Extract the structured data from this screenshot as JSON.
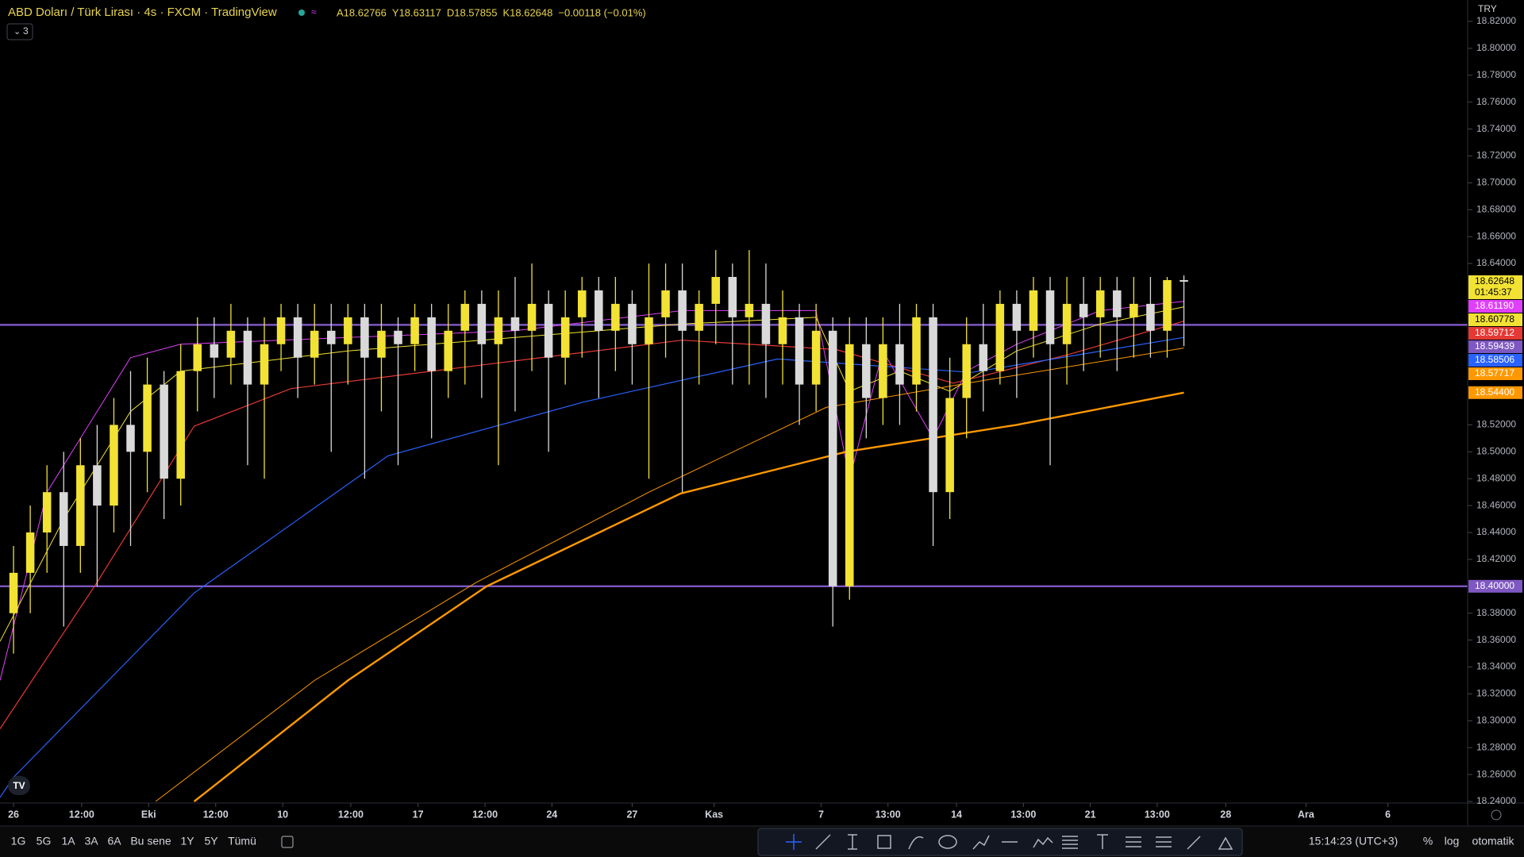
{
  "header": {
    "title": "ABD Doları / Türk Lirası · 4s · FXCM · TradingView",
    "ohlc": [
      "A18.62766",
      "Y18.63117",
      "D18.57855",
      "K18.62648",
      "−0.00118 (−0.01%)"
    ],
    "indicators": "3",
    "currency": "TRY"
  },
  "chart_data": {
    "type": "candlestick",
    "xlim": [
      -0.81,
      86.97
    ],
    "ylim": [
      18.24,
      18.82
    ],
    "xticks": [
      {
        "value": 0,
        "label": "26"
      },
      {
        "value": 4.07,
        "label": "12:00"
      },
      {
        "value": 8.08,
        "label": "Eki"
      },
      {
        "value": 12.09,
        "label": "12:00"
      },
      {
        "value": 16.1,
        "label": "10"
      },
      {
        "value": 20.17,
        "label": "12:00"
      },
      {
        "value": 24.19,
        "label": "17"
      },
      {
        "value": 28.2,
        "label": "12:00"
      },
      {
        "value": 32.2,
        "label": "24"
      },
      {
        "value": 37.0,
        "label": "27"
      },
      {
        "value": 41.9,
        "label": "Kas"
      },
      {
        "value": 48.3,
        "label": "7"
      },
      {
        "value": 52.3,
        "label": "13:00"
      },
      {
        "value": 56.4,
        "label": "14"
      },
      {
        "value": 60.4,
        "label": "13:00"
      },
      {
        "value": 64.4,
        "label": "21"
      },
      {
        "value": 68.4,
        "label": "13:00"
      },
      {
        "value": 72.5,
        "label": "28"
      },
      {
        "value": 77.3,
        "label": "Ara"
      },
      {
        "value": 82.2,
        "label": "6"
      }
    ],
    "yticks": [
      {
        "value": 18.24,
        "label": "18.24000"
      },
      {
        "value": 18.26,
        "label": "18.26000"
      },
      {
        "value": 18.28,
        "label": "18.28000"
      },
      {
        "value": 18.3,
        "label": "18.30000"
      },
      {
        "value": 18.32,
        "label": "18.32000"
      },
      {
        "value": 18.34,
        "label": "18.34000"
      },
      {
        "value": 18.36,
        "label": "18.36000"
      },
      {
        "value": 18.38,
        "label": "18.38000"
      },
      {
        "value": 18.42,
        "label": "18.42000"
      },
      {
        "value": 18.44,
        "label": "18.44000"
      },
      {
        "value": 18.46,
        "label": "18.46000"
      },
      {
        "value": 18.48,
        "label": "18.48000"
      },
      {
        "value": 18.5,
        "label": "18.50000"
      },
      {
        "value": 18.52,
        "label": "18.52000"
      },
      {
        "value": 18.64,
        "label": "18.64000"
      },
      {
        "value": 18.66,
        "label": "18.66000"
      },
      {
        "value": 18.68,
        "label": "18.68000"
      },
      {
        "value": 18.7,
        "label": "18.70000"
      },
      {
        "value": 18.72,
        "label": "18.72000"
      },
      {
        "value": 18.74,
        "label": "18.74000"
      },
      {
        "value": 18.76,
        "label": "18.76000"
      },
      {
        "value": 18.78,
        "label": "18.78000"
      },
      {
        "value": 18.8,
        "label": "18.80000"
      },
      {
        "value": 18.82,
        "label": "18.82000"
      }
    ],
    "candles": {
      "up_color": "#f2e234",
      "down_color": "#d9d9d9",
      "x": [
        0,
        1,
        2,
        3,
        4,
        5,
        6,
        7,
        8,
        9,
        10,
        11,
        12,
        13,
        14,
        15,
        16,
        17,
        18,
        19,
        20,
        21,
        22,
        23,
        24,
        25,
        26,
        27,
        28,
        29,
        30,
        31,
        32,
        33,
        34,
        35,
        36,
        37,
        38,
        39,
        40,
        41,
        42,
        43,
        44,
        45,
        46,
        47,
        48,
        49,
        50,
        51,
        52,
        53,
        54,
        55,
        56,
        57,
        58,
        59,
        60,
        61,
        62,
        63,
        64,
        65,
        66,
        67,
        68,
        69,
        70
      ],
      "open": [
        18.38,
        18.41,
        18.44,
        18.47,
        18.43,
        18.49,
        18.46,
        18.52,
        18.5,
        18.55,
        18.48,
        18.56,
        18.58,
        18.57,
        18.59,
        18.55,
        18.58,
        18.6,
        18.57,
        18.59,
        18.58,
        18.6,
        18.57,
        18.59,
        18.58,
        18.6,
        18.56,
        18.59,
        18.61,
        18.58,
        18.6,
        18.59,
        18.61,
        18.57,
        18.6,
        18.62,
        18.59,
        18.61,
        18.58,
        18.6,
        18.62,
        18.59,
        18.61,
        18.63,
        18.6,
        18.61,
        18.58,
        18.6,
        18.55,
        18.59,
        18.4,
        18.58,
        18.54,
        18.58,
        18.55,
        18.6,
        18.47,
        18.54,
        18.58,
        18.56,
        18.61,
        18.59,
        18.62,
        18.58,
        18.61,
        18.6,
        18.62,
        18.6,
        18.61,
        18.59,
        18.62766
      ],
      "high": [
        18.43,
        18.46,
        18.49,
        18.5,
        18.51,
        18.52,
        18.54,
        18.56,
        18.57,
        18.56,
        18.58,
        18.6,
        18.6,
        18.61,
        18.6,
        18.6,
        18.61,
        18.61,
        18.61,
        18.61,
        18.61,
        18.61,
        18.61,
        18.6,
        18.61,
        18.61,
        18.61,
        18.62,
        18.62,
        18.62,
        18.63,
        18.64,
        18.62,
        18.62,
        18.63,
        18.63,
        18.63,
        18.62,
        18.64,
        18.64,
        18.64,
        18.62,
        18.65,
        18.64,
        18.65,
        18.64,
        18.62,
        18.61,
        18.61,
        18.6,
        18.6,
        18.6,
        18.6,
        18.61,
        18.61,
        18.61,
        18.57,
        18.6,
        18.61,
        18.62,
        18.62,
        18.63,
        18.63,
        18.63,
        18.63,
        18.63,
        18.63,
        18.63,
        18.63,
        18.63,
        18.63117
      ],
      "low": [
        18.35,
        18.38,
        18.41,
        18.37,
        18.41,
        18.4,
        18.44,
        18.43,
        18.47,
        18.45,
        18.46,
        18.53,
        18.54,
        18.55,
        18.49,
        18.48,
        18.56,
        18.54,
        18.55,
        18.5,
        18.55,
        18.48,
        18.53,
        18.49,
        18.56,
        18.51,
        18.54,
        18.55,
        18.54,
        18.49,
        18.53,
        18.56,
        18.5,
        18.55,
        18.57,
        18.54,
        18.56,
        18.55,
        18.48,
        18.57,
        18.47,
        18.55,
        18.58,
        18.55,
        18.55,
        18.54,
        18.55,
        18.52,
        18.53,
        18.37,
        18.39,
        18.51,
        18.52,
        18.52,
        18.53,
        18.43,
        18.45,
        18.51,
        18.53,
        18.55,
        18.54,
        18.57,
        18.49,
        18.55,
        18.56,
        18.57,
        18.56,
        18.57,
        18.57,
        18.57,
        18.57855
      ],
      "close": [
        18.41,
        18.44,
        18.47,
        18.43,
        18.49,
        18.46,
        18.52,
        18.5,
        18.55,
        18.48,
        18.56,
        18.58,
        18.57,
        18.59,
        18.55,
        18.58,
        18.6,
        18.57,
        18.59,
        18.58,
        18.6,
        18.57,
        18.59,
        18.58,
        18.6,
        18.56,
        18.59,
        18.61,
        18.58,
        18.6,
        18.59,
        18.61,
        18.57,
        18.6,
        18.62,
        18.59,
        18.61,
        18.58,
        18.6,
        18.62,
        18.59,
        18.61,
        18.63,
        18.6,
        18.61,
        18.58,
        18.6,
        18.55,
        18.59,
        18.4,
        18.58,
        18.54,
        18.58,
        18.55,
        18.6,
        18.47,
        18.54,
        18.58,
        18.56,
        18.61,
        18.59,
        18.62,
        18.58,
        18.61,
        18.6,
        18.62,
        18.6,
        18.61,
        18.59,
        18.62766,
        18.62648
      ],
      "last_label": "18.62648",
      "countdown": "01:45:37"
    },
    "series": [
      {
        "color": "#e040fb",
        "width": 1,
        "x": [
          -0.81,
          2,
          4,
          7,
          10,
          20,
          30,
          40,
          48,
          50,
          52,
          55,
          57,
          60,
          65,
          70
        ],
        "values": [
          18.33,
          18.47,
          18.51,
          18.57,
          18.58,
          18.585,
          18.59,
          18.605,
          18.605,
          18.48,
          18.575,
          18.51,
          18.56,
          18.58,
          18.605,
          18.6119
        ],
        "last_label": "18.61190"
      },
      {
        "color": "#f2e234",
        "width": 1,
        "x": [
          -0.81,
          3,
          7,
          10,
          20,
          30,
          40,
          48,
          50,
          53,
          56,
          60,
          65,
          70
        ],
        "values": [
          18.359,
          18.45,
          18.53,
          18.56,
          18.575,
          18.585,
          18.595,
          18.6,
          18.545,
          18.56,
          18.545,
          18.575,
          18.595,
          18.60778
        ],
        "last_label": "18.60778"
      },
      {
        "color": "#e53935",
        "width": 1.2,
        "x": [
          -0.81,
          5,
          10.8,
          16.6,
          28.3,
          40,
          49.2,
          56.2,
          63,
          70
        ],
        "values": [
          18.294,
          18.403,
          18.519,
          18.547,
          18.565,
          18.583,
          18.576,
          18.551,
          18.572,
          18.59712
        ],
        "last_label": "18.59712"
      },
      {
        "color": "#2962ff",
        "width": 1.2,
        "x": [
          -0.81,
          0,
          10.8,
          22.4,
          34.1,
          45.7,
          57.3,
          70
        ],
        "values": [
          18.243,
          18.258,
          18.395,
          18.497,
          18.537,
          18.569,
          18.559,
          18.58506
        ],
        "last_label": "18.58506"
      },
      {
        "color": "#ff9800",
        "width": 1,
        "x": [
          8.5,
          18,
          27.7,
          38,
          48.6,
          58,
          70
        ],
        "values": [
          18.24,
          18.33,
          18.403,
          18.47,
          18.533,
          18.553,
          18.57717
        ],
        "last_label": "18.57717"
      },
      {
        "color": "#ff9800",
        "width": 2.4,
        "x": [
          10.8,
          20,
          28.3,
          39.9,
          49.8,
          60,
          70
        ],
        "values": [
          18.24,
          18.33,
          18.4,
          18.469,
          18.5,
          18.52,
          18.544
        ],
        "last_label": "18.54400"
      }
    ],
    "hlines": [
      {
        "value": 18.59439,
        "label": "18.59439",
        "color": "#7e57c2"
      },
      {
        "value": 18.4,
        "label": "18.40000",
        "color": "#7e57c2"
      }
    ]
  },
  "toolbar": {
    "ranges": [
      "1G",
      "5G",
      "1A",
      "3A",
      "6A",
      "Bu sene",
      "1Y",
      "5Y",
      "Tümü"
    ],
    "clock": "15:14:23 (UTC+3)",
    "scale": [
      "%",
      "log",
      "otomatik"
    ]
  }
}
